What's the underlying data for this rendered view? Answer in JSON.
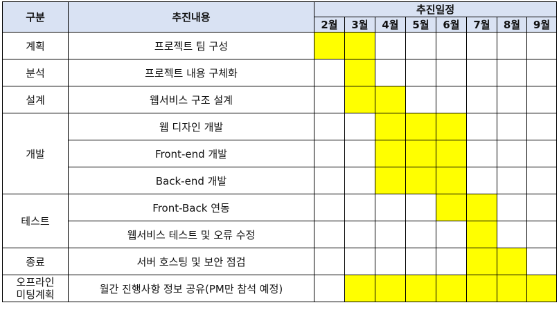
{
  "header": {
    "category": "구분",
    "content": "추진내용",
    "schedule": "추진일정",
    "months": [
      "2월",
      "3월",
      "4월",
      "5월",
      "6월",
      "7월",
      "8월",
      "9월"
    ]
  },
  "groups": [
    {
      "category": "계획",
      "tasks": [
        {
          "label": "프로젝트 팀 구성",
          "filled": [
            true,
            true,
            false,
            false,
            false,
            false,
            false,
            false
          ]
        }
      ]
    },
    {
      "category": "분석",
      "tasks": [
        {
          "label": "프로젝트 내용 구체화",
          "filled": [
            false,
            true,
            false,
            false,
            false,
            false,
            false,
            false
          ]
        }
      ]
    },
    {
      "category": "설계",
      "tasks": [
        {
          "label": "웹서비스 구조 설계",
          "filled": [
            false,
            true,
            true,
            false,
            false,
            false,
            false,
            false
          ]
        }
      ]
    },
    {
      "category": "개발",
      "tasks": [
        {
          "label": "웹 디자인 개발",
          "filled": [
            false,
            false,
            true,
            true,
            true,
            false,
            false,
            false
          ]
        },
        {
          "label": "Front-end 개발",
          "filled": [
            false,
            false,
            true,
            true,
            true,
            false,
            false,
            false
          ]
        },
        {
          "label": "Back-end 개발",
          "filled": [
            false,
            false,
            true,
            true,
            true,
            false,
            false,
            false
          ]
        }
      ]
    },
    {
      "category": "테스트",
      "tasks": [
        {
          "label": "Front-Back 연동",
          "filled": [
            false,
            false,
            false,
            false,
            true,
            true,
            false,
            false
          ]
        },
        {
          "label": "웹서비스 테스트 및 오류 수정",
          "filled": [
            false,
            false,
            false,
            false,
            false,
            true,
            false,
            false
          ]
        }
      ]
    },
    {
      "category": "종료",
      "tasks": [
        {
          "label": "서버 호스팅 및 보안 점검",
          "filled": [
            false,
            false,
            false,
            false,
            false,
            true,
            true,
            false
          ]
        }
      ]
    },
    {
      "category_lines": [
        "오프라인",
        "미팅계획"
      ],
      "tasks": [
        {
          "label": "월간 진행사항 정보 공유(PM만 참석 예정)",
          "filled": [
            false,
            true,
            true,
            true,
            true,
            true,
            true,
            true
          ]
        }
      ]
    }
  ],
  "colors": {
    "header_bg": "#d9e2f3",
    "fill": "#ffff00"
  }
}
